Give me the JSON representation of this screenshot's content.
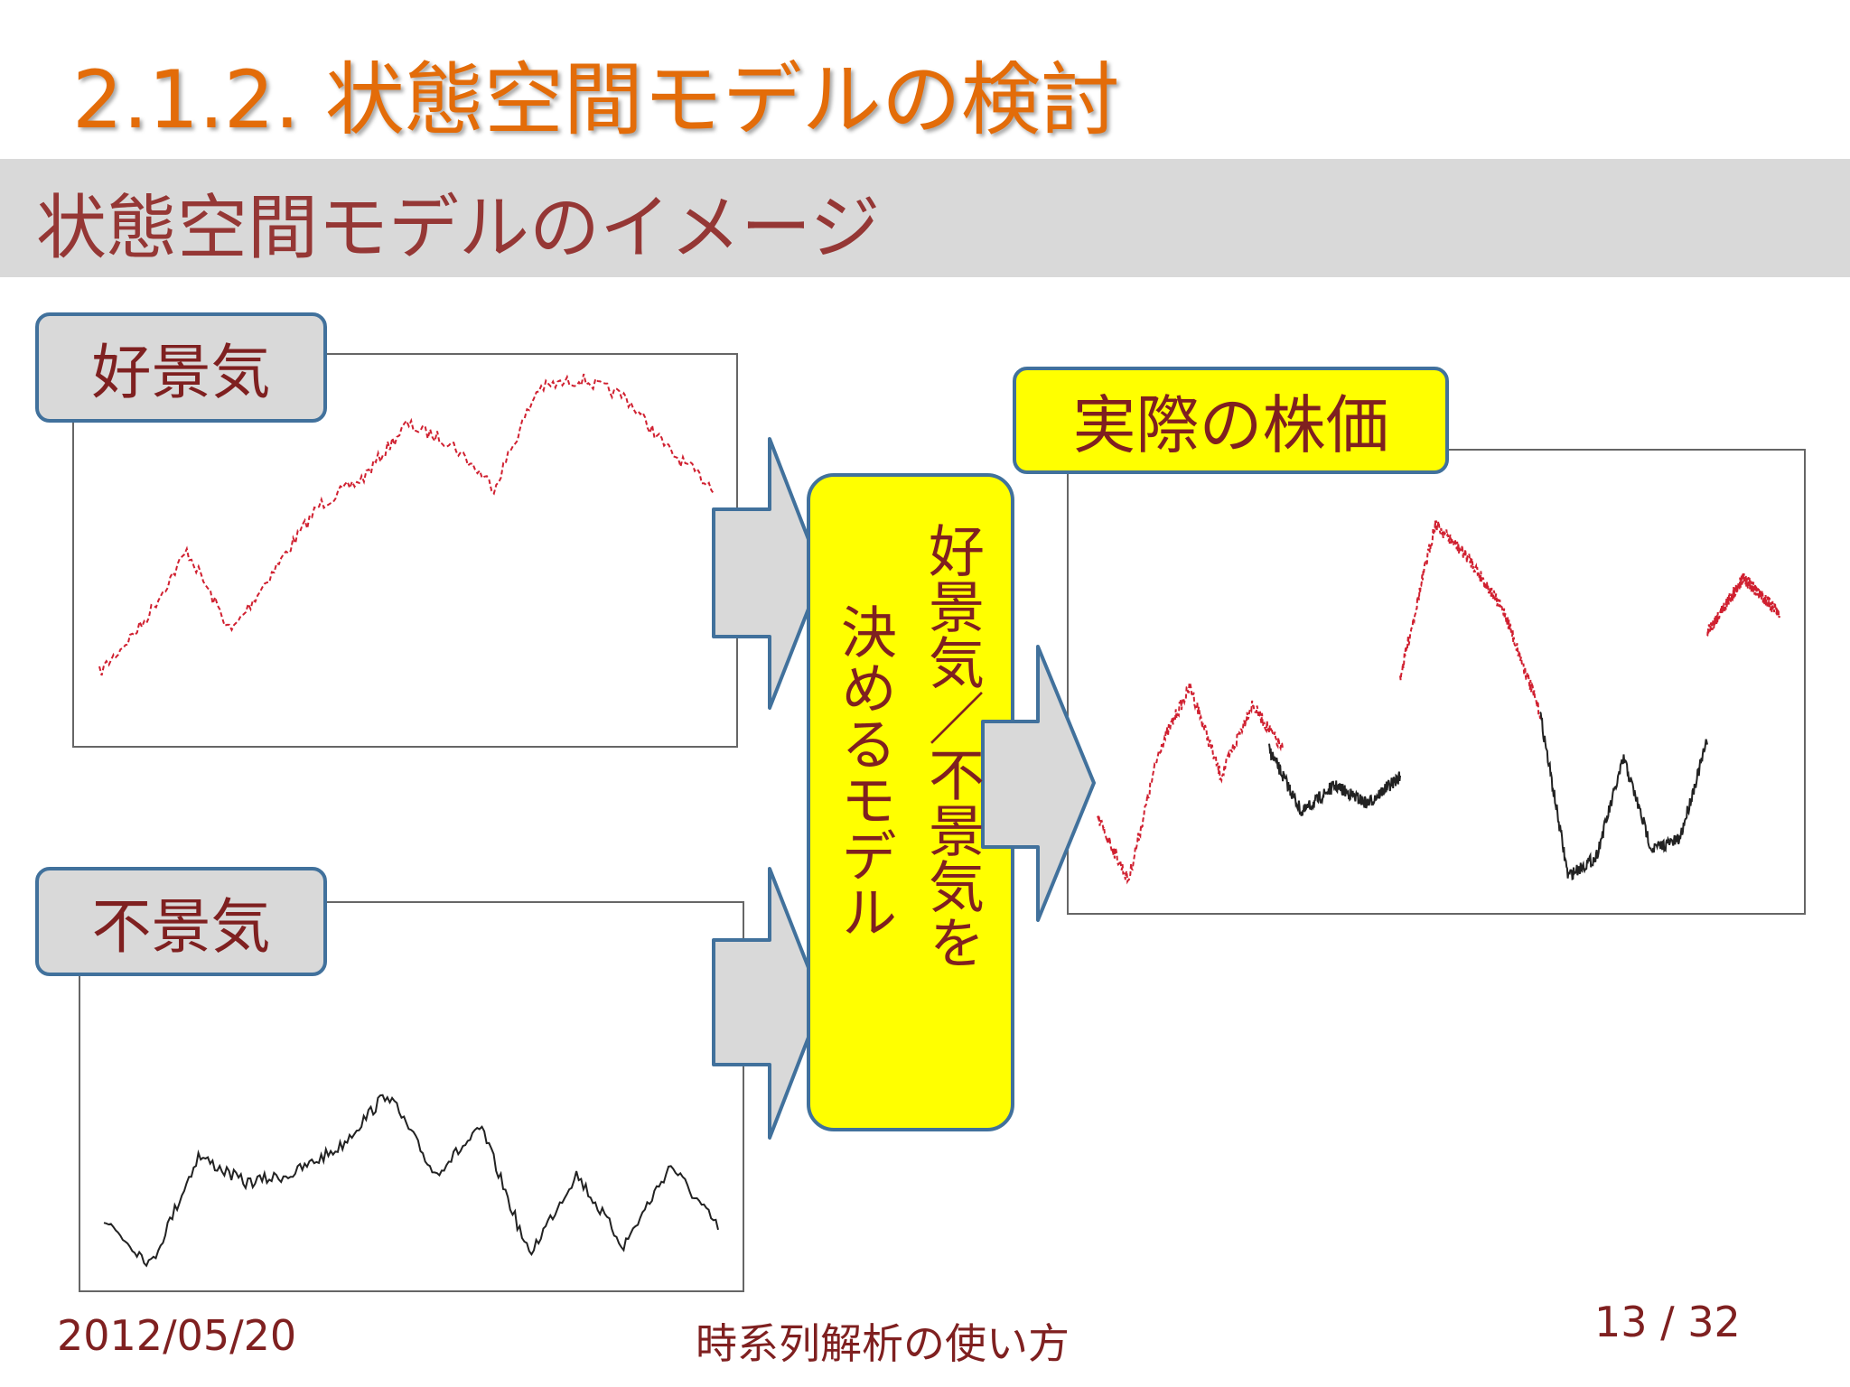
{
  "header": {
    "title": "2.1.2. 状態空間モデルの検討",
    "subtitle": "状態空間モデルのイメージ"
  },
  "panels": {
    "boom": "好景気",
    "recession": "不景気",
    "actual": "実際の株価"
  },
  "model": {
    "line1": "好景気／不景気を",
    "line2": "決めるモデル"
  },
  "footer": {
    "date": "2012/05/20",
    "center": "時系列解析の使い方",
    "page": "13 / 32"
  }
}
